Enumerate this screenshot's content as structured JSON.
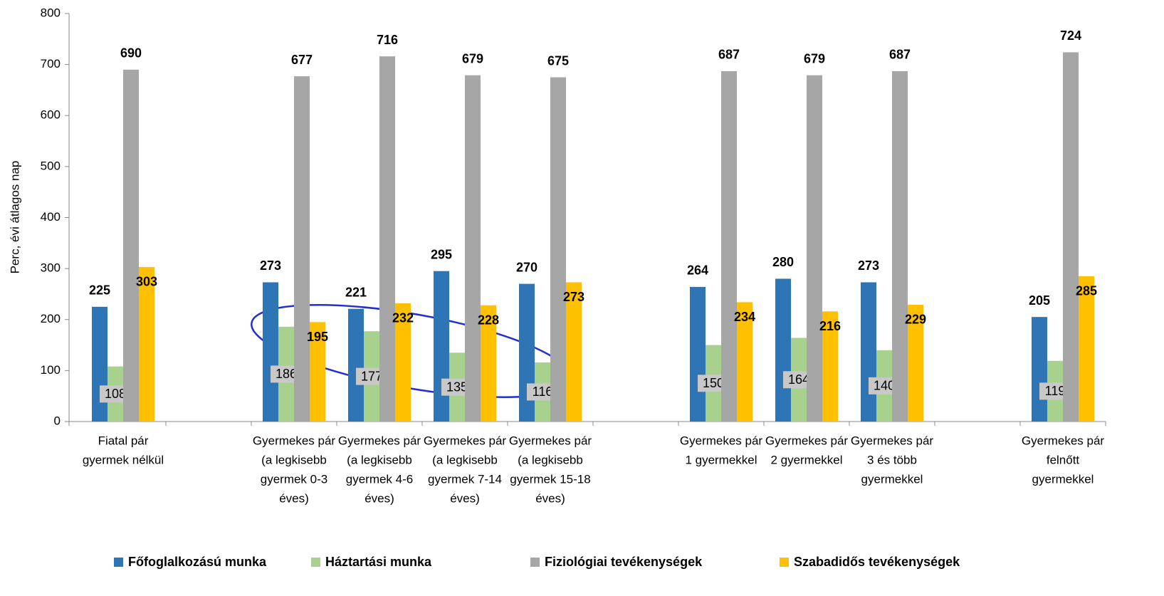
{
  "chart_data": {
    "type": "bar",
    "y_label": "Perc, évi átlagos nap",
    "categories": [
      [
        "Fiatal pár",
        "gyermek nélkül"
      ],
      null,
      [
        "Gyermekes pár",
        "(a legkisebb",
        "gyermek 0-3",
        "éves)"
      ],
      [
        "Gyermekes pár",
        "(a legkisebb",
        "gyermek 4-6",
        "éves)"
      ],
      [
        "Gyermekes pár",
        "(a legkisebb",
        "gyermek 7-14",
        "éves)"
      ],
      [
        "Gyermekes pár",
        "(a legkisebb",
        "gyermek 15-18",
        "éves)"
      ],
      null,
      [
        "Gyermekes pár",
        "1 gyermekkel"
      ],
      [
        "Gyermekes pár",
        "2 gyermekkel"
      ],
      [
        "Gyermekes pár",
        "3 és több",
        "gyermekkel"
      ],
      null,
      [
        "Gyermekes pár",
        "felnőtt",
        "gyermekkel"
      ]
    ],
    "series": [
      {
        "name": "Főfoglalkozású munka",
        "color": "#2e75b6",
        "values": [
          225,
          null,
          273,
          221,
          295,
          270,
          null,
          264,
          280,
          273,
          null,
          205
        ]
      },
      {
        "name": "Háztartási munka",
        "color": "#a9d18e",
        "values": [
          108,
          null,
          186,
          177,
          135,
          116,
          null,
          150,
          164,
          140,
          null,
          119
        ]
      },
      {
        "name": "Fiziológiai tevékenységek",
        "color": "#a6a6a6",
        "values": [
          690,
          null,
          677,
          716,
          679,
          675,
          null,
          687,
          679,
          687,
          null,
          724
        ]
      },
      {
        "name": "Szabadidős tevékenységek",
        "color": "#ffc000",
        "values": [
          303,
          null,
          195,
          232,
          228,
          273,
          null,
          234,
          216,
          229,
          null,
          285
        ]
      }
    ],
    "ylim": [
      0,
      800
    ],
    "yticks": [
      0,
      100,
      200,
      300,
      400,
      500,
      600,
      700,
      800
    ],
    "grid": false,
    "legend": "bottom"
  }
}
